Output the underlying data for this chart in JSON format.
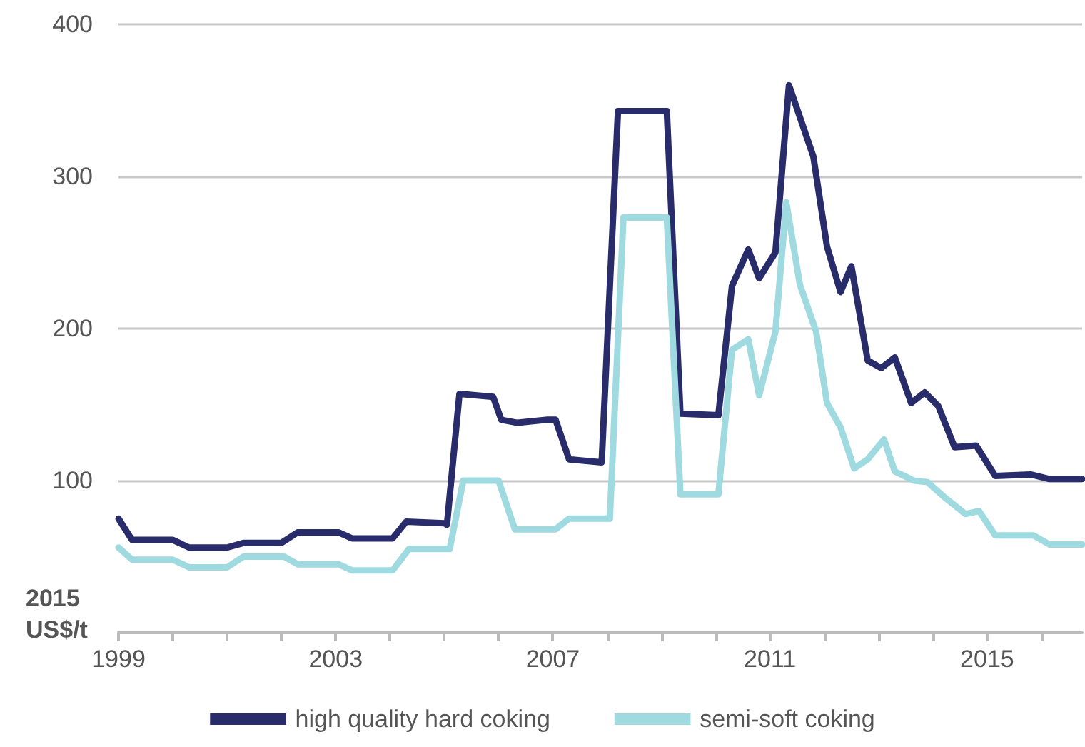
{
  "chart_data": {
    "type": "line",
    "ylabel": "2015 US$/t",
    "xlim": [
      1999,
      2016.75
    ],
    "ylim": [
      0,
      400
    ],
    "yticks": [
      100,
      200,
      300,
      400
    ],
    "xticks": [
      1999,
      {
        "value": 2000,
        "label": null
      },
      {
        "value": 2001,
        "label": null
      },
      {
        "value": 2002,
        "label": null
      },
      2003,
      {
        "value": 2004,
        "label": null
      },
      {
        "value": 2005,
        "label": null
      },
      {
        "value": 2006,
        "label": null
      },
      2007,
      {
        "value": 2008,
        "label": null
      },
      {
        "value": 2009,
        "label": null
      },
      {
        "value": 2010,
        "label": null
      },
      2011,
      {
        "value": 2012,
        "label": null
      },
      {
        "value": 2013,
        "label": null
      },
      {
        "value": 2014,
        "label": null
      },
      2015,
      {
        "value": 2016,
        "label": null
      }
    ],
    "grid": "y",
    "legend": "bottom",
    "marker": "none",
    "line_style": "solid",
    "series": [
      {
        "name": "high quality hard coking",
        "color": "#282c6a",
        "x": [
          1999.0,
          1999.25,
          2000.0,
          2000.3,
          2001.0,
          2001.3,
          2002.0,
          2002.3,
          2003.05,
          2003.3,
          2004.05,
          2004.3,
          2005.0,
          2005.05,
          2005.28,
          2005.9,
          2006.05,
          2006.35,
          2006.9,
          2007.05,
          2007.3,
          2007.9,
          2008.2,
          2009.1,
          2009.35,
          2010.05,
          2010.3,
          2010.6,
          2010.8,
          2011.1,
          2011.35,
          2011.8,
          2012.05,
          2012.3,
          2012.5,
          2012.8,
          2013.05,
          2013.3,
          2013.6,
          2013.85,
          2014.1,
          2014.4,
          2014.8,
          2015.15,
          2015.8,
          2016.15,
          2016.75
        ],
        "values": [
          75,
          61,
          61,
          56,
          56,
          59,
          59,
          66,
          66,
          62,
          62,
          73,
          72,
          71,
          157,
          155,
          140,
          138,
          140,
          140,
          114,
          112,
          343,
          343,
          144,
          143,
          228,
          252,
          233,
          250,
          360,
          313,
          254,
          224,
          241,
          179,
          174,
          181,
          151,
          158,
          149,
          122,
          123,
          103,
          104,
          101,
          101
        ]
      },
      {
        "name": "semi-soft coking",
        "color": "#9fdae0",
        "x": [
          1999.0,
          1999.25,
          2000.0,
          2000.3,
          2001.0,
          2001.3,
          2002.05,
          2002.3,
          2003.05,
          2003.3,
          2004.05,
          2004.35,
          2005.1,
          2005.35,
          2006.0,
          2006.3,
          2007.05,
          2007.3,
          2008.05,
          2008.3,
          2009.1,
          2009.35,
          2010.05,
          2010.3,
          2010.6,
          2010.8,
          2011.1,
          2011.3,
          2011.55,
          2011.85,
          2012.05,
          2012.3,
          2012.55,
          2012.8,
          2013.1,
          2013.3,
          2013.65,
          2013.9,
          2014.25,
          2014.6,
          2014.85,
          2015.15,
          2015.85,
          2016.15,
          2016.75
        ],
        "values": [
          56,
          48,
          48,
          43,
          43,
          50,
          50,
          45,
          45,
          41,
          41,
          55,
          55,
          100,
          100,
          68,
          68,
          75,
          75,
          273,
          273,
          91,
          91,
          186,
          193,
          156,
          198,
          283,
          229,
          198,
          151,
          135,
          108,
          114,
          127,
          106,
          100,
          99,
          88,
          78,
          80,
          64,
          64,
          58,
          58
        ]
      }
    ]
  }
}
